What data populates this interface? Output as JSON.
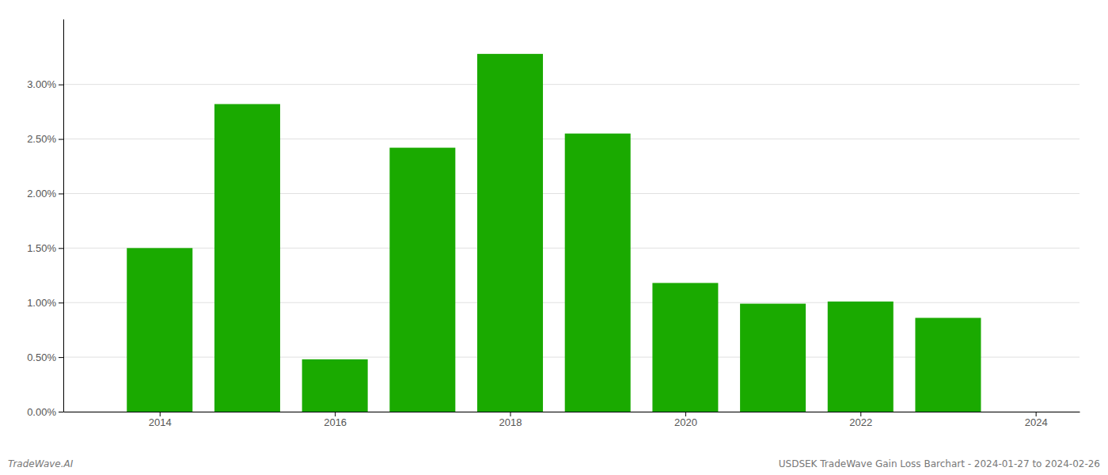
{
  "chart_data": {
    "type": "bar",
    "x": [
      2014,
      2015,
      2016,
      2017,
      2018,
      2019,
      2020,
      2021,
      2022,
      2023
    ],
    "values": [
      0.015,
      0.0282,
      0.0048,
      0.0242,
      0.0328,
      0.0255,
      0.0118,
      0.0099,
      0.0101,
      0.0086
    ],
    "color": "#1aaa00",
    "xlim": [
      2012.9,
      2024.5
    ],
    "xticks": [
      2014,
      2016,
      2018,
      2020,
      2022,
      2024
    ],
    "ylim": [
      0,
      0.036
    ],
    "yticks": [
      {
        "value": 0.0,
        "label": "0.00%"
      },
      {
        "value": 0.005,
        "label": "0.50%"
      },
      {
        "value": 0.01,
        "label": "1.00%"
      },
      {
        "value": 0.015,
        "label": "1.50%"
      },
      {
        "value": 0.02,
        "label": "2.00%"
      },
      {
        "value": 0.025,
        "label": "2.50%"
      },
      {
        "value": 0.03,
        "label": "3.00%"
      }
    ],
    "grid": true,
    "annotations": [
      "TradeWave.AI",
      "USDSEK TradeWave Gain Loss Barchart - 2024-01-27 to 2024-02-26"
    ]
  }
}
